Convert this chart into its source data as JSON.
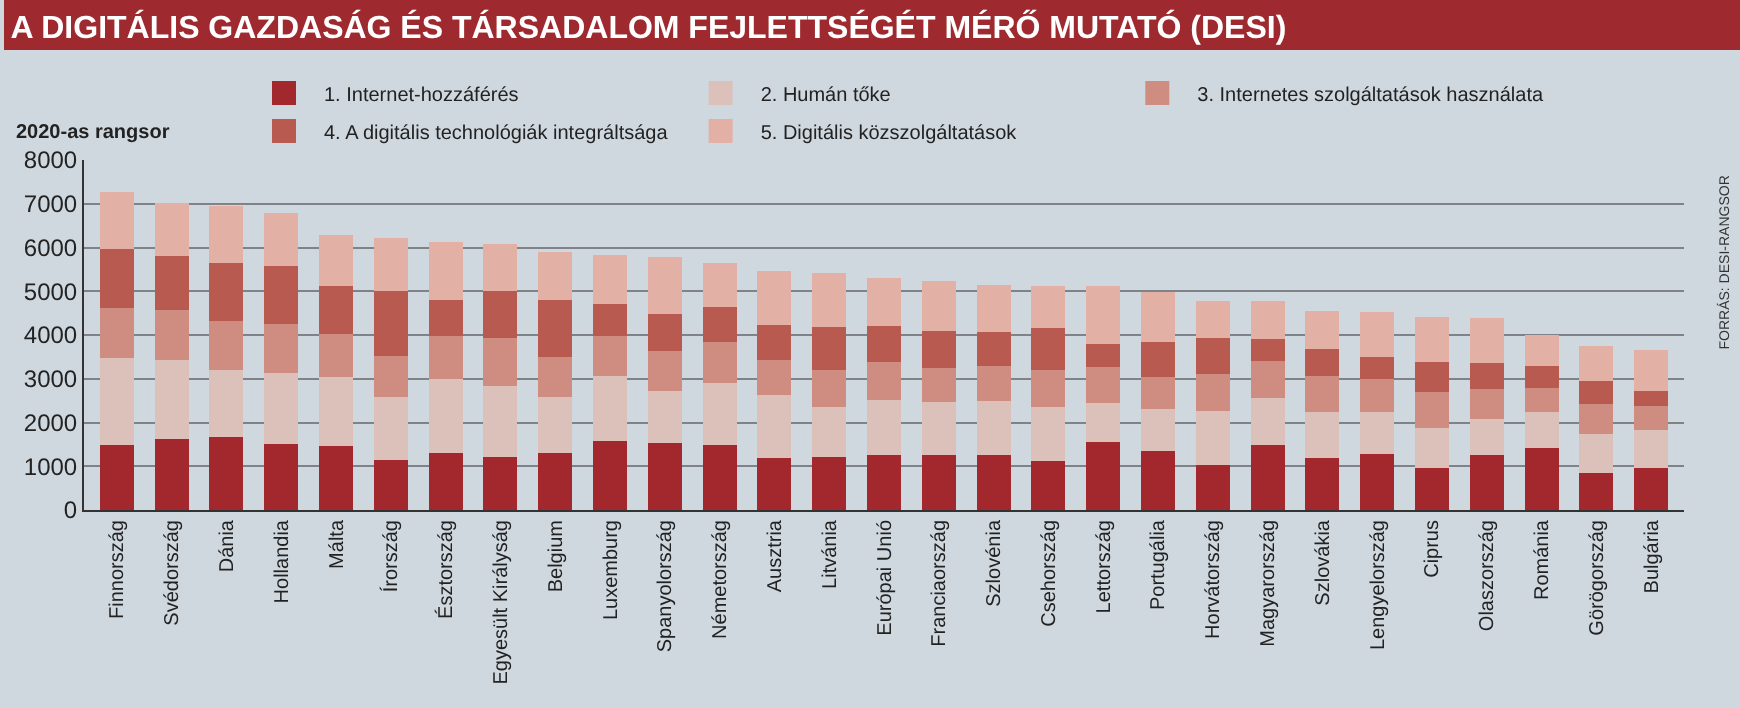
{
  "chart_data": {
    "type": "bar",
    "stacked": true,
    "title": "A DIGITÁLIS GAZDASÁG ÉS TÁRSADALOM FEJLETTSÉGÉT MÉRŐ MUTATÓ (DESI)",
    "ylabel": "2020-as rangsor",
    "categories": [
      "Finnország",
      "Svédország",
      "Dánia",
      "Hollandia",
      "Málta",
      "Írország",
      "Észtország",
      "Egyesült Királyság",
      "Belgium",
      "Luxemburg",
      "Spanyolország",
      "Németország",
      "Ausztria",
      "Litvánia",
      "Európai Unió",
      "Franciaország",
      "Szlovénia",
      "Csehország",
      "Lettország",
      "Portugália",
      "Horvátország",
      "Magyarország",
      "Szlovákia",
      "Lengyelország",
      "Ciprus",
      "Olaszország",
      "Románia",
      "Görögország",
      "Bulgária"
    ],
    "series": [
      {
        "name": "1. Internet-hozzáférés",
        "color": "#a3282e",
        "values": [
          1480,
          1620,
          1660,
          1510,
          1470,
          1140,
          1300,
          1220,
          1300,
          1580,
          1540,
          1480,
          1180,
          1220,
          1260,
          1260,
          1260,
          1130,
          1550,
          1360,
          1030,
          1490,
          1200,
          1290,
          960,
          1260,
          1410,
          840,
          960
        ]
      },
      {
        "name": "2. Humán tőke",
        "color": "#dcc1ba",
        "values": [
          2000,
          1820,
          1530,
          1630,
          1560,
          1440,
          1690,
          1610,
          1280,
          1490,
          1190,
          1430,
          1440,
          1130,
          1250,
          1200,
          1230,
          1220,
          890,
          940,
          1240,
          1060,
          1050,
          940,
          910,
          830,
          840,
          890,
          860
        ]
      },
      {
        "name": "3. Internetes szolgáltatások használata",
        "color": "#cf8c80",
        "values": [
          1140,
          1140,
          1140,
          1120,
          1000,
          940,
          980,
          1100,
          920,
          900,
          910,
          930,
          820,
          860,
          870,
          790,
          800,
          840,
          820,
          730,
          840,
          850,
          820,
          760,
          830,
          670,
          550,
          700,
          560
        ]
      },
      {
        "name": "4. A digitális technológiák integráltsága",
        "color": "#b95a50",
        "values": [
          1340,
          1230,
          1310,
          1320,
          1090,
          1480,
          820,
          1070,
          1310,
          740,
          830,
          790,
          800,
          970,
          820,
          840,
          780,
          980,
          540,
          810,
          830,
          510,
          620,
          510,
          680,
          610,
          490,
          530,
          350
        ]
      },
      {
        "name": "5. Digitális közszolgáltatások",
        "color": "#e3b0a6",
        "values": [
          1310,
          1200,
          1300,
          1220,
          1170,
          1210,
          1340,
          1070,
          1080,
          1120,
          1320,
          1010,
          1230,
          1240,
          1100,
          1150,
          1080,
          940,
          1310,
          1140,
          830,
          860,
          850,
          1020,
          1030,
          1020,
          720,
          790,
          920
        ]
      }
    ],
    "ylim": [
      0,
      8000
    ],
    "yticks": [
      0,
      1000,
      2000,
      3000,
      4000,
      5000,
      6000,
      7000,
      8000
    ],
    "grid": "y",
    "legend": "top",
    "annotations": [
      "FORRÁS: DESI-RANGSOR"
    ]
  }
}
